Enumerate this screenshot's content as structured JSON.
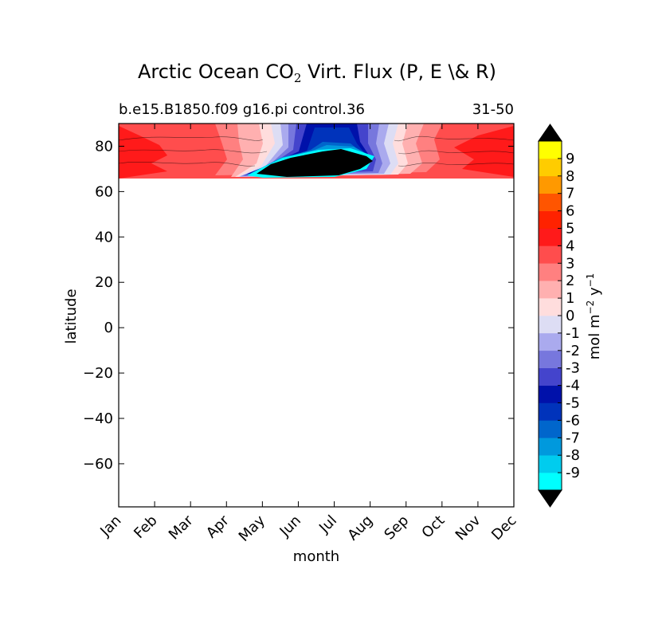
{
  "chart_data": {
    "type": "contour",
    "title_main": "Arctic Ocean CO",
    "title_sub": "2",
    "title_rest": " Virt. Flux (P, E \\& R)",
    "case_label": "b.e15.B1850.f09 g16.pi control.36",
    "years_label": "31-50",
    "xlabel": "month",
    "ylabel": "latitude",
    "x_categories": [
      "Jan",
      "Feb",
      "Mar",
      "Apr",
      "May",
      "Jun",
      "Jul",
      "Aug",
      "Sep",
      "Oct",
      "Nov",
      "Dec"
    ],
    "y_ticks": [
      80,
      60,
      40,
      20,
      0,
      -20,
      -40,
      -60
    ],
    "y_tick_labels": [
      "80",
      "60",
      "40",
      "20",
      "0",
      "−20",
      "−40",
      "−60"
    ],
    "ylim": [
      -79,
      90
    ],
    "data_lat_range": [
      66,
      90
    ],
    "colorbar": {
      "label_main": "mol m",
      "label_exp1": "−2",
      "label_mid": " y",
      "label_exp2": "−1",
      "levels": [
        -9,
        -8,
        -7,
        -6,
        -5,
        -4,
        -3,
        -2,
        -1,
        0,
        1,
        2,
        3,
        4,
        5,
        6,
        7,
        8,
        9
      ],
      "tick_labels": [
        "-9",
        "-8",
        "-7",
        "-6",
        "-5",
        "-4",
        "-3",
        "-2",
        "-1",
        "0",
        "1",
        "2",
        "3",
        "4",
        "5",
        "6",
        "7",
        "8",
        "9"
      ],
      "colors": [
        "#00ffff",
        "#00ccee",
        "#0099dd",
        "#0066cc",
        "#0033bb",
        "#0011aa",
        "#4444cc",
        "#7777dd",
        "#aaaaee",
        "#ddddf4",
        "#ffdddd",
        "#ffb0b0",
        "#ff8080",
        "#ff4d4d",
        "#ff1a1a",
        "#ff2200",
        "#ff5500",
        "#ff9900",
        "#ffcc00",
        "#ffff00"
      ],
      "extend_color": "#000000"
    }
  }
}
